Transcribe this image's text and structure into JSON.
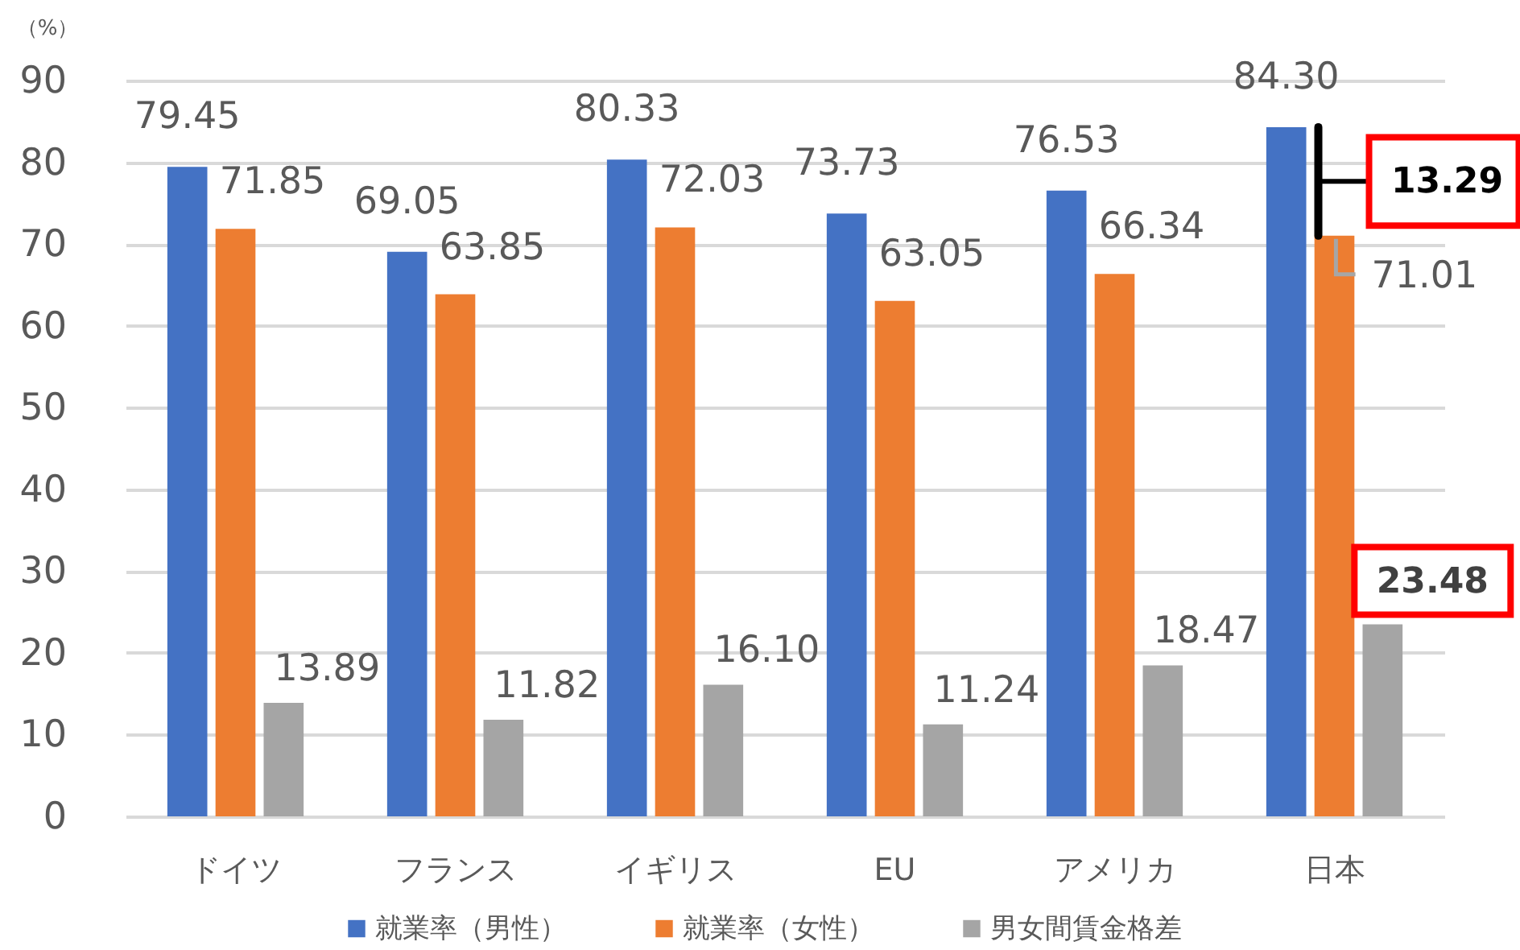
{
  "chart_data": {
    "type": "bar",
    "ylabel": "（%）",
    "categories": [
      "ドイツ",
      "フランス",
      "イギリス",
      "EU",
      "アメリカ",
      "日本"
    ],
    "series": [
      {
        "name": "就業率（男性）",
        "color": "#4472c4",
        "values": [
          79.45,
          69.05,
          80.33,
          73.73,
          76.53,
          84.3
        ],
        "value_labels": [
          "79.45",
          "69.05",
          "80.33",
          "73.73",
          "76.53",
          "84.30"
        ]
      },
      {
        "name": "就業率（女性）",
        "color": "#ed7d31",
        "values": [
          71.85,
          63.85,
          72.03,
          63.05,
          66.34,
          71.01
        ],
        "value_labels": [
          "71.85",
          "63.85",
          "72.03",
          "63.05",
          "66.34",
          "71.01"
        ]
      },
      {
        "name": "男女間賃金格差",
        "color": "#a5a5a5",
        "values": [
          13.89,
          11.82,
          16.1,
          11.24,
          18.47,
          23.48
        ],
        "value_labels": [
          "13.89",
          "11.82",
          "16.10",
          "11.24",
          "18.47",
          "23.48"
        ]
      }
    ],
    "ylim": [
      0,
      90
    ],
    "yticks": [
      0,
      10,
      20,
      30,
      40,
      50,
      60,
      70,
      80,
      90
    ],
    "grid": "y",
    "legend": "bottom",
    "annotations": [
      "13.29"
    ]
  }
}
